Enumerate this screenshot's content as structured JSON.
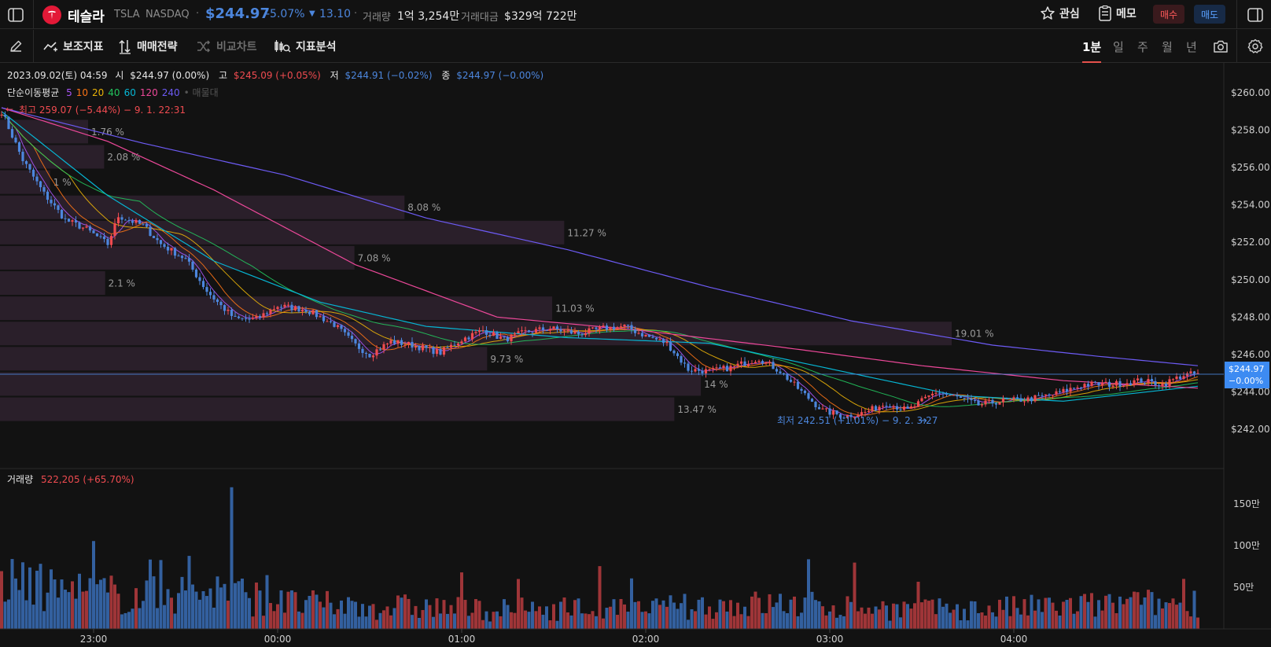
{
  "header": {
    "name": "테슬라",
    "ticker": "TSLA",
    "exchange": "NASDAQ",
    "price": "$244.97",
    "change_pct": "-5.07%",
    "change_amt": "13.10",
    "volume_label": "거래량",
    "volume_value": "1억 3,254만",
    "turnover_label": "거래대금",
    "turnover_value": "$329억 722만",
    "watch_label": "관심",
    "memo_label": "메모",
    "buy_label": "매수",
    "sell_label": "매도"
  },
  "toolbar": {
    "indicators_label": "보조지표",
    "strategy_label": "매매전략",
    "compare_label": "비교차트",
    "analysis_label": "지표분석",
    "periods": [
      "1분",
      "일",
      "주",
      "월",
      "년"
    ],
    "active_period": "1분"
  },
  "legend": {
    "ohlc_date": "2023.09.02(토) 04:59",
    "open_label": "시",
    "open_value": "$244.97 (0.00%)",
    "high_label": "고",
    "high_value": "$245.09 (+0.05%)",
    "low_label": "저",
    "low_value": "$244.91 (−0.02%)",
    "close_label": "종",
    "close_value": "$244.97 (−0.00%)",
    "ma_label": "단순이동평균",
    "ma_periods": [
      "5",
      "10",
      "20",
      "40",
      "60",
      "120",
      "240"
    ],
    "ma_extra": "• 매물대",
    "ma_colors": [
      "#a855f7",
      "#f97316",
      "#eab308",
      "#22c55e",
      "#06b6d4",
      "#ec4899",
      "#6d5bf5"
    ],
    "high_marker": "최고 259.07 (−5.44%) − 9. 1. 22:31",
    "low_marker": "최저 242.51 (+1.01%) − 9. 2. 3:27",
    "volume_label": "거래량",
    "volume_value": "522,205 (+65.70%)"
  },
  "colors": {
    "up": "#ef4b50",
    "down": "#4c86dd",
    "accent": "#3d8bf2"
  },
  "chart_data": {
    "type": "candlestick",
    "interval": "1분",
    "x_ticks": [
      "23:00",
      "00:00",
      "01:00",
      "02:00",
      "03:00",
      "04:00"
    ],
    "y_ticks": [
      "$260.00",
      "$258.00",
      "$256.00",
      "$254.00",
      "$252.00",
      "$250.00",
      "$248.00",
      "$246.00",
      "$244.00",
      "$242.00"
    ],
    "ylim": [
      240.3,
      261.3
    ],
    "current_price_label": "$244.97",
    "current_change_label": "−0.00%",
    "current_price": 244.97,
    "high": 259.07,
    "low": 242.51,
    "volume_ticks": [
      "150만",
      "100만",
      "50만"
    ],
    "volume_ylim": [
      0,
      1900000
    ],
    "volume_profile": [
      {
        "price": 257.9,
        "pct": "1.76 %",
        "value": 1.76
      },
      {
        "price": 256.55,
        "pct": "2.08 %",
        "value": 2.08
      },
      {
        "price": 255.2,
        "pct": "1 %",
        "value": 1.0
      },
      {
        "price": 253.85,
        "pct": "8.08 %",
        "value": 8.08
      },
      {
        "price": 252.5,
        "pct": "11.27 %",
        "value": 11.27
      },
      {
        "price": 251.15,
        "pct": "7.08 %",
        "value": 7.08
      },
      {
        "price": 249.8,
        "pct": "2.1 %",
        "value": 2.1
      },
      {
        "price": 248.45,
        "pct": "11.03 %",
        "value": 11.03
      },
      {
        "price": 247.1,
        "pct": "19.01 %",
        "value": 19.01
      },
      {
        "price": 245.75,
        "pct": "9.73 %",
        "value": 9.73
      },
      {
        "price": 244.4,
        "pct": "14 %",
        "value": 14.0
      },
      {
        "price": 243.05,
        "pct": "13.47 %",
        "value": 13.47
      }
    ],
    "close_path": [
      [
        0,
        259.0
      ],
      [
        6,
        256.4
      ],
      [
        12,
        254.6
      ],
      [
        18,
        253.2
      ],
      [
        24,
        252.7
      ],
      [
        30,
        251.9
      ],
      [
        33,
        253.4
      ],
      [
        40,
        252.9
      ],
      [
        45,
        251.9
      ],
      [
        52,
        251.1
      ],
      [
        58,
        249.4
      ],
      [
        62,
        248.6
      ],
      [
        66,
        247.9
      ],
      [
        72,
        247.9
      ],
      [
        78,
        248.6
      ],
      [
        86,
        248.4
      ],
      [
        94,
        247.6
      ],
      [
        100,
        246.5
      ],
      [
        104,
        246.0
      ],
      [
        110,
        246.7
      ],
      [
        116,
        246.5
      ],
      [
        124,
        246.1
      ],
      [
        130,
        246.8
      ],
      [
        136,
        247.3
      ],
      [
        142,
        246.8
      ],
      [
        148,
        247.2
      ],
      [
        155,
        247.4
      ],
      [
        163,
        247.1
      ],
      [
        170,
        247.4
      ],
      [
        176,
        247.5
      ],
      [
        182,
        247.0
      ],
      [
        188,
        246.6
      ],
      [
        194,
        245.2
      ],
      [
        200,
        245.1
      ],
      [
        206,
        245.3
      ],
      [
        214,
        245.8
      ],
      [
        220,
        245.1
      ],
      [
        226,
        244.0
      ],
      [
        232,
        243.0
      ],
      [
        238,
        242.7
      ],
      [
        244,
        242.9
      ],
      [
        250,
        243.4
      ],
      [
        256,
        243.0
      ],
      [
        264,
        244.0
      ],
      [
        270,
        243.7
      ],
      [
        276,
        243.3
      ],
      [
        282,
        243.5
      ],
      [
        290,
        243.6
      ],
      [
        298,
        243.9
      ],
      [
        306,
        244.4
      ],
      [
        314,
        244.4
      ],
      [
        322,
        244.6
      ],
      [
        328,
        244.4
      ],
      [
        334,
        244.9
      ],
      [
        338,
        244.97
      ]
    ],
    "ma_lines": [
      {
        "period": "60",
        "path": [
          [
            0,
            259.0
          ],
          [
            30,
            254.5
          ],
          [
            60,
            251.0
          ],
          [
            90,
            248.8
          ],
          [
            120,
            247.5
          ],
          [
            160,
            246.9
          ],
          [
            200,
            246.6
          ],
          [
            240,
            245.0
          ],
          [
            270,
            243.8
          ],
          [
            300,
            243.5
          ],
          [
            338,
            244.3
          ]
        ]
      },
      {
        "period": "120",
        "path": [
          [
            0,
            259.2
          ],
          [
            30,
            257.4
          ],
          [
            60,
            254.8
          ],
          [
            100,
            250.8
          ],
          [
            140,
            248.0
          ],
          [
            180,
            247.3
          ],
          [
            220,
            246.4
          ],
          [
            260,
            245.4
          ],
          [
            300,
            244.6
          ],
          [
            338,
            244.2
          ]
        ]
      },
      {
        "period": "240",
        "path": [
          [
            0,
            259.2
          ],
          [
            40,
            257.3
          ],
          [
            80,
            255.6
          ],
          [
            120,
            253.3
          ],
          [
            160,
            251.6
          ],
          [
            200,
            249.6
          ],
          [
            240,
            247.8
          ],
          [
            280,
            246.5
          ],
          [
            310,
            245.9
          ],
          [
            338,
            245.4
          ]
        ]
      }
    ],
    "volume_envelope": [
      [
        0,
        600000
      ],
      [
        20,
        500000
      ],
      [
        40,
        430000
      ],
      [
        60,
        520000
      ],
      [
        80,
        340000
      ],
      [
        100,
        300000
      ],
      [
        120,
        290000
      ],
      [
        140,
        250000
      ],
      [
        160,
        280000
      ],
      [
        180,
        250000
      ],
      [
        200,
        320000
      ],
      [
        220,
        330000
      ],
      [
        240,
        300000
      ],
      [
        260,
        250000
      ],
      [
        280,
        270000
      ],
      [
        300,
        300000
      ],
      [
        320,
        330000
      ],
      [
        338,
        350000
      ]
    ]
  }
}
